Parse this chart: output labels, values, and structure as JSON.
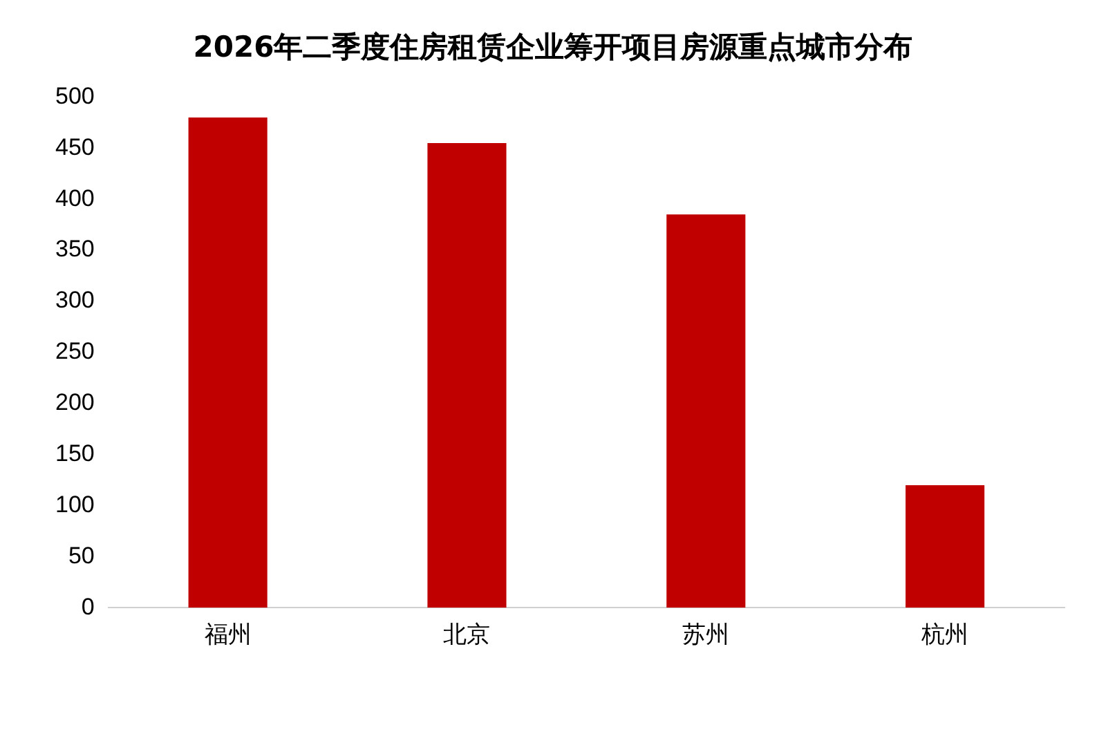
{
  "chart_data": {
    "type": "bar",
    "title": "2026年二季度住房租赁企业筹开项目房源重点城市分布",
    "categories": [
      "福州",
      "北京",
      "苏州",
      "杭州"
    ],
    "values": [
      480,
      455,
      385,
      120
    ],
    "color": "#c00000",
    "ylim": [
      0,
      500
    ],
    "yticks": [
      0,
      50,
      100,
      150,
      200,
      250,
      300,
      350,
      400,
      450,
      500
    ],
    "grid": false
  }
}
